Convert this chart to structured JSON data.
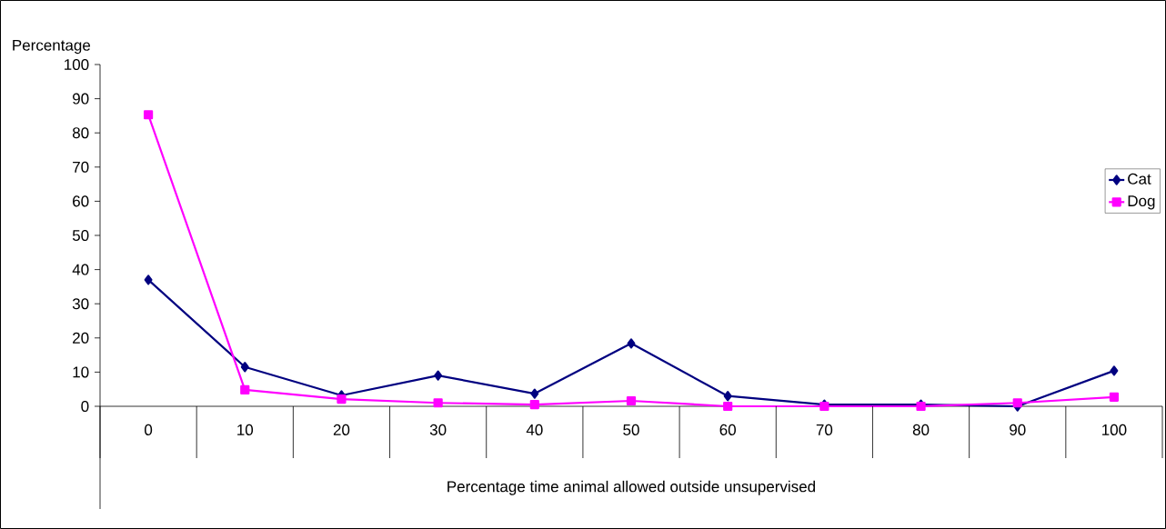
{
  "chart_data": {
    "type": "line",
    "xlabel": "Percentage time animal allowed outside unsupervised",
    "ylabel": "Percentage",
    "categories": [
      "0",
      "10",
      "20",
      "30",
      "40",
      "50",
      "60",
      "70",
      "80",
      "90",
      "100"
    ],
    "series": [
      {
        "name": "Cat",
        "color": "#000080",
        "marker": "diamond",
        "values": [
          37,
          11.5,
          3.2,
          9,
          3.7,
          18.4,
          3,
          0.5,
          0.5,
          0,
          10.4
        ]
      },
      {
        "name": "Dog",
        "color": "#ff00ff",
        "marker": "square",
        "values": [
          85.3,
          4.8,
          2.1,
          1,
          0.5,
          1.6,
          0,
          0,
          0,
          1,
          2.7
        ]
      }
    ],
    "ylim": [
      0,
      100
    ],
    "yticks": [
      0,
      10,
      20,
      30,
      40,
      50,
      60,
      70,
      80,
      90,
      100
    ],
    "grid": false,
    "legend": "right",
    "line_style": "solid"
  }
}
